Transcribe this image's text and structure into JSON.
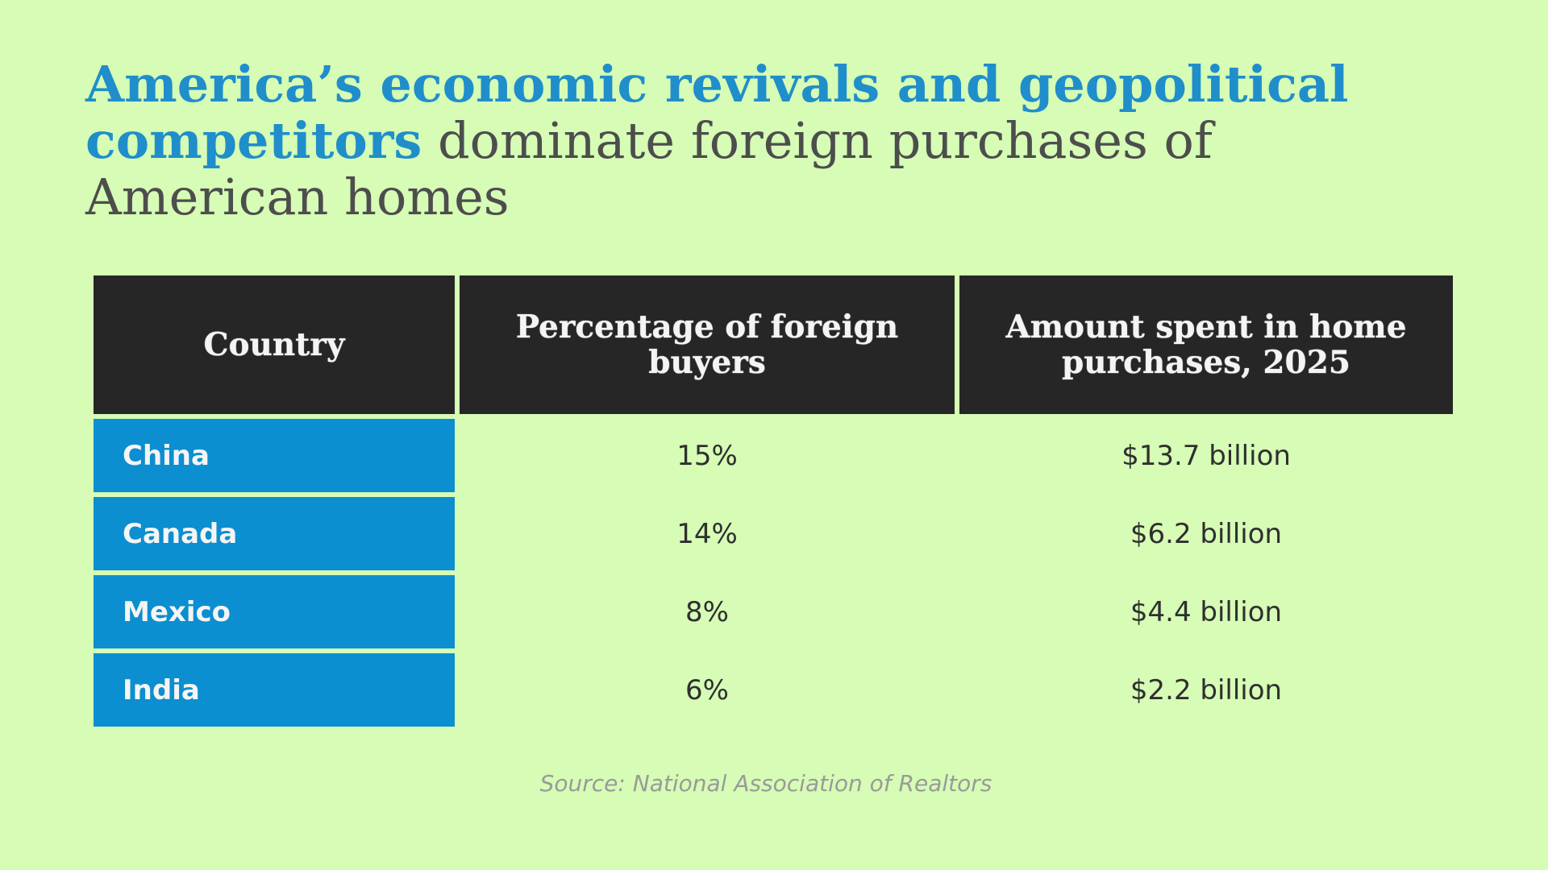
{
  "title": {
    "highlight": "America’s economic revivals and geopolitical competitors",
    "rest": "dominate foreign purchases of American homes"
  },
  "colors": {
    "background": "#d6fcb5",
    "accent": "#1f8ecb",
    "header_bg": "#262626",
    "country_cell_bg": "#0b8fd0"
  },
  "chart_data": {
    "type": "table",
    "columns": [
      "Country",
      "Percentage of foreign buyers",
      "Amount spent in home purchases, 2025"
    ],
    "rows": [
      [
        "China",
        "15%",
        "$13.7 billion"
      ],
      [
        "Canada",
        "14%",
        "$6.2 billion"
      ],
      [
        "Mexico",
        "8%",
        "$4.4 billion"
      ],
      [
        "India",
        "6%",
        "$2.2 billion"
      ]
    ]
  },
  "source": "Source: National Association of Realtors"
}
